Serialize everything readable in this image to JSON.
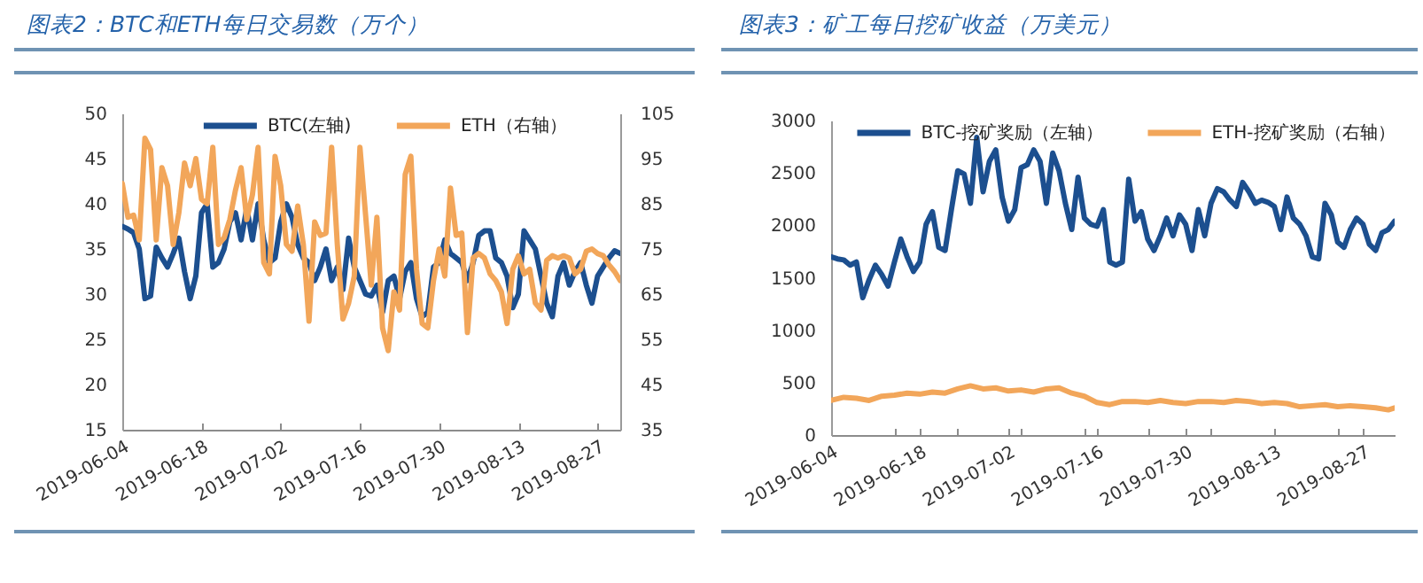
{
  "chart_data": [
    {
      "type": "line",
      "title": "图表2：BTC和ETH每日交易数（万个）",
      "x": [
        "2019-06-04",
        "2019-06-05",
        "2019-06-06",
        "2019-06-07",
        "2019-06-08",
        "2019-06-09",
        "2019-06-10",
        "2019-06-11",
        "2019-06-12",
        "2019-06-13",
        "2019-06-14",
        "2019-06-15",
        "2019-06-16",
        "2019-06-17",
        "2019-06-18",
        "2019-06-19",
        "2019-06-20",
        "2019-06-21",
        "2019-06-22",
        "2019-06-23",
        "2019-06-24",
        "2019-06-25",
        "2019-06-26",
        "2019-06-27",
        "2019-06-28",
        "2019-06-29",
        "2019-06-30",
        "2019-07-01",
        "2019-07-02",
        "2019-07-03",
        "2019-07-04",
        "2019-07-05",
        "2019-07-06",
        "2019-07-07",
        "2019-07-08",
        "2019-07-09",
        "2019-07-10",
        "2019-07-11",
        "2019-07-12",
        "2019-07-13",
        "2019-07-14",
        "2019-07-15",
        "2019-07-16",
        "2019-07-17",
        "2019-07-18",
        "2019-07-19",
        "2019-07-20",
        "2019-07-21",
        "2019-07-22",
        "2019-07-23",
        "2019-07-24",
        "2019-07-25",
        "2019-07-26",
        "2019-07-27",
        "2019-07-28",
        "2019-07-29",
        "2019-07-30",
        "2019-07-31",
        "2019-08-01",
        "2019-08-02",
        "2019-08-03",
        "2019-08-04",
        "2019-08-05",
        "2019-08-06",
        "2019-08-07",
        "2019-08-08",
        "2019-08-09",
        "2019-08-10",
        "2019-08-11",
        "2019-08-12",
        "2019-08-13",
        "2019-08-14",
        "2019-08-15",
        "2019-08-16",
        "2019-08-17",
        "2019-08-18",
        "2019-08-19",
        "2019-08-20",
        "2019-08-21",
        "2019-08-22",
        "2019-08-23",
        "2019-08-24",
        "2019-08-25",
        "2019-08-26",
        "2019-08-27",
        "2019-08-28",
        "2019-08-29",
        "2019-08-30",
        "2019-08-31"
      ],
      "series": [
        {
          "name": "BTC(左轴)",
          "color": "#1c4f8f",
          "values": [
            37.5,
            37.2,
            36.8,
            35.0,
            29.5,
            29.8,
            35.2,
            34.0,
            33.0,
            34.5,
            36.2,
            32.5,
            29.5,
            32.0,
            39.0,
            40.0,
            33.0,
            33.5,
            35.0,
            38.0,
            39.0,
            36.0,
            39.5,
            36.0,
            40.0,
            36.0,
            33.5,
            34.0,
            38.0,
            40.0,
            38.5,
            35.5,
            34.0,
            33.5,
            31.5,
            33.0,
            35.0,
            31.5,
            33.0,
            30.5,
            36.2,
            33.0,
            31.5,
            30.0,
            29.8,
            31.0,
            28.0,
            31.5,
            32.0,
            29.5,
            32.5,
            33.5,
            29.5,
            27.5,
            28.0,
            33.0,
            33.5,
            36.0,
            34.5,
            34.0,
            33.5,
            31.5,
            33.5,
            36.5,
            37.0,
            37.0,
            34.0,
            33.5,
            32.0,
            28.5,
            30.0,
            37.0,
            36.0,
            35.0,
            32.0,
            29.0,
            27.5,
            32.0,
            33.5,
            31.0,
            32.5,
            33.5,
            31.0,
            29.0,
            32.0,
            33.0,
            34.0,
            34.8,
            34.5
          ]
        },
        {
          "name": "ETH（右轴）",
          "color": "#f2a65a",
          "axis": "y2",
          "values": [
            89.5,
            82,
            82.5,
            77,
            99.5,
            97,
            77,
            93,
            89,
            76,
            83,
            94,
            89,
            95,
            86,
            85,
            97.5,
            76,
            77.5,
            81.5,
            88,
            93,
            81.5,
            87,
            97.5,
            72,
            69.5,
            95.5,
            89,
            76,
            74.5,
            84.5,
            76,
            59,
            81,
            78,
            78.5,
            97.5,
            76,
            59.5,
            63,
            69,
            97.5,
            82.5,
            67,
            82,
            57.5,
            52.5,
            65.5,
            61.5,
            91.5,
            95.5,
            70.5,
            58.5,
            57.5,
            68,
            75,
            69,
            88.5,
            78,
            78.5,
            56.5,
            73,
            74,
            73,
            69.5,
            68,
            65.5,
            58.5,
            70.5,
            73.5,
            69.5,
            70.5,
            63,
            61.5,
            72.5,
            73.5,
            73,
            73.5,
            73,
            69.5,
            70.5,
            74.5,
            75,
            74,
            73.5,
            71.5,
            70,
            68
          ]
        }
      ],
      "xlim": [
        "2019-06-04",
        "2019-08-31"
      ],
      "xticks": [
        "2019-06-04",
        "2019-06-18",
        "2019-07-02",
        "2019-07-16",
        "2019-07-30",
        "2019-08-13",
        "2019-08-27"
      ],
      "ylim": [
        15,
        50
      ],
      "yticks": [
        15,
        20,
        25,
        30,
        35,
        40,
        45,
        50
      ],
      "y2lim": [
        35,
        105
      ],
      "y2ticks": [
        35,
        45,
        55,
        65,
        75,
        85,
        95,
        105
      ],
      "legend": "top"
    },
    {
      "type": "line",
      "title": "图表3：矿工每日挖矿收益（万美元）",
      "x": [
        "2019-06-04",
        "2019-06-05",
        "2019-06-06",
        "2019-06-07",
        "2019-06-08",
        "2019-06-09",
        "2019-06-10",
        "2019-06-11",
        "2019-06-12",
        "2019-06-13",
        "2019-06-14",
        "2019-06-15",
        "2019-06-16",
        "2019-06-17",
        "2019-06-18",
        "2019-06-19",
        "2019-06-20",
        "2019-06-21",
        "2019-06-22",
        "2019-06-23",
        "2019-06-24",
        "2019-06-25",
        "2019-06-26",
        "2019-06-27",
        "2019-06-28",
        "2019-06-29",
        "2019-06-30",
        "2019-07-01",
        "2019-07-02",
        "2019-07-03",
        "2019-07-04",
        "2019-07-05",
        "2019-07-06",
        "2019-07-07",
        "2019-07-08",
        "2019-07-09",
        "2019-07-10",
        "2019-07-11",
        "2019-07-12",
        "2019-07-13",
        "2019-07-14",
        "2019-07-15",
        "2019-07-16",
        "2019-07-17",
        "2019-07-18",
        "2019-07-19",
        "2019-07-20",
        "2019-07-21",
        "2019-07-22",
        "2019-07-23",
        "2019-07-24",
        "2019-07-25",
        "2019-07-26",
        "2019-07-27",
        "2019-07-28",
        "2019-07-29",
        "2019-07-30",
        "2019-07-31",
        "2019-08-01",
        "2019-08-02",
        "2019-08-03",
        "2019-08-04",
        "2019-08-05",
        "2019-08-06",
        "2019-08-07",
        "2019-08-08",
        "2019-08-09",
        "2019-08-10",
        "2019-08-11",
        "2019-08-12",
        "2019-08-13",
        "2019-08-14",
        "2019-08-15",
        "2019-08-16",
        "2019-08-17",
        "2019-08-18",
        "2019-08-19",
        "2019-08-20",
        "2019-08-21",
        "2019-08-22",
        "2019-08-23",
        "2019-08-24",
        "2019-08-25",
        "2019-08-26",
        "2019-08-27",
        "2019-08-28",
        "2019-08-29",
        "2019-08-30",
        "2019-08-31",
        "2019-09-01"
      ],
      "series": [
        {
          "name": "BTC-挖矿奖励（左轴）",
          "color": "#1c4f8f",
          "values": [
            1700,
            1680,
            1670,
            1620,
            1650,
            1310,
            1480,
            1620,
            1530,
            1420,
            1650,
            1870,
            1700,
            1560,
            1650,
            2010,
            2130,
            1790,
            1760,
            2150,
            2520,
            2490,
            2210,
            2840,
            2320,
            2610,
            2720,
            2270,
            2040,
            2150,
            2550,
            2580,
            2720,
            2610,
            2210,
            2690,
            2520,
            2210,
            1960,
            2460,
            2070,
            2010,
            1990,
            2150,
            1650,
            1620,
            1650,
            2440,
            2040,
            2130,
            1870,
            1760,
            1900,
            2070,
            1900,
            2100,
            2010,
            1760,
            2150,
            1900,
            2210,
            2350,
            2320,
            2240,
            2180,
            2410,
            2320,
            2210,
            2240,
            2220,
            2180,
            1960,
            2270,
            2070,
            2010,
            1900,
            1700,
            1680,
            2210,
            2100,
            1840,
            1790,
            1960,
            2070,
            2010,
            1820,
            1760,
            1930,
            1960,
            2040
          ]
        },
        {
          "name": "ETH-挖矿奖励（右轴）",
          "color": "#f2a65a",
          "x": [
            "2019-06-04",
            "2019-06-06",
            "2019-06-08",
            "2019-06-10",
            "2019-06-12",
            "2019-06-14",
            "2019-06-16",
            "2019-06-18",
            "2019-06-20",
            "2019-06-22",
            "2019-06-24",
            "2019-06-26",
            "2019-06-28",
            "2019-06-30",
            "2019-07-02",
            "2019-07-04",
            "2019-07-06",
            "2019-07-08",
            "2019-07-10",
            "2019-07-12",
            "2019-07-14",
            "2019-07-16",
            "2019-07-18",
            "2019-07-20",
            "2019-07-22",
            "2019-07-24",
            "2019-07-26",
            "2019-07-28",
            "2019-07-30",
            "2019-08-01",
            "2019-08-03",
            "2019-08-05",
            "2019-08-07",
            "2019-08-09",
            "2019-08-11",
            "2019-08-13",
            "2019-08-15",
            "2019-08-17",
            "2019-08-19",
            "2019-08-21",
            "2019-08-23",
            "2019-08-25",
            "2019-08-27",
            "2019-08-29",
            "2019-08-31",
            "2019-09-01"
          ],
          "values": [
            330,
            360,
            350,
            330,
            370,
            380,
            400,
            390,
            410,
            400,
            440,
            470,
            440,
            450,
            420,
            430,
            410,
            440,
            450,
            400,
            370,
            310,
            290,
            320,
            320,
            310,
            330,
            310,
            300,
            320,
            320,
            310,
            330,
            320,
            300,
            310,
            300,
            270,
            280,
            290,
            270,
            280,
            270,
            260,
            240,
            260
          ]
        }
      ],
      "xlim": [
        "2019-06-04",
        "2019-09-01"
      ],
      "xticks": [
        "2019-06-04",
        {
          "value": "2019-06-14",
          "label": null
        },
        "2019-06-18",
        {
          "value": "2019-06-24",
          "label": null
        },
        "2019-07-02",
        {
          "value": "2019-07-04",
          "label": null
        },
        {
          "value": "2019-07-14",
          "label": null
        },
        "2019-07-16",
        {
          "value": "2019-07-24",
          "label": null
        },
        "2019-07-30",
        {
          "value": "2019-08-03",
          "label": null
        },
        "2019-08-13",
        {
          "value": "2019-08-23",
          "label": null
        },
        "2019-08-27"
      ],
      "ylim": [
        0,
        3000
      ],
      "yticks": [
        0,
        500,
        1000,
        1500,
        2000,
        2500,
        3000
      ],
      "legend": "top"
    }
  ]
}
